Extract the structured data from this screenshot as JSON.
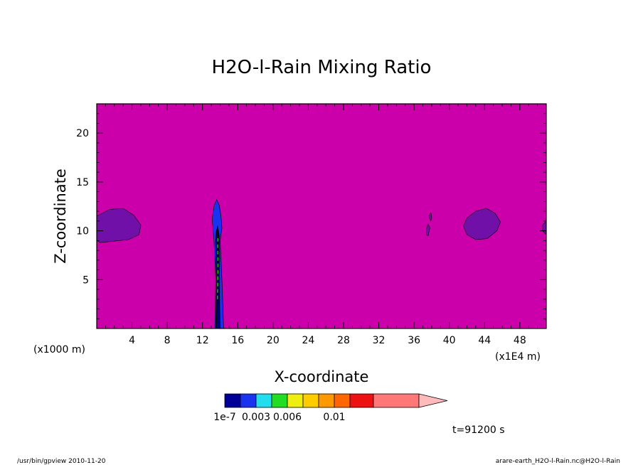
{
  "chart_data": {
    "type": "heatmap",
    "title": "H2O-l-Rain Mixing Ratio",
    "xlabel": "X-coordinate",
    "ylabel": "Z-coordinate",
    "x_unit_left": "(x1000 m)",
    "x_unit_right": "(x1E4 m)",
    "xlim": [
      0,
      51
    ],
    "ylim": [
      0,
      23
    ],
    "x_ticks": [
      "4",
      "8",
      "12",
      "16",
      "20",
      "24",
      "28",
      "32",
      "36",
      "40",
      "44",
      "48"
    ],
    "x_tick_values": [
      4,
      8,
      12,
      16,
      20,
      24,
      28,
      32,
      36,
      40,
      44,
      48
    ],
    "y_ticks": [
      "5",
      "10",
      "15",
      "20"
    ],
    "y_tick_values": [
      5,
      10,
      15,
      20
    ],
    "background_color": "#cc00aa",
    "regions": [
      {
        "label": "patch-left",
        "color": "#7010a8",
        "points": [
          [
            0,
            9
          ],
          [
            0,
            11.5
          ],
          [
            1.5,
            12.2
          ],
          [
            3,
            12.3
          ],
          [
            4.2,
            11.6
          ],
          [
            5,
            10.6
          ],
          [
            4.8,
            9.6
          ],
          [
            3.6,
            9.1
          ],
          [
            1.5,
            8.9
          ],
          [
            0.4,
            8.8
          ]
        ]
      },
      {
        "label": "column-outer",
        "color": "#1a33ee",
        "points": [
          [
            13.4,
            0
          ],
          [
            13.5,
            5
          ],
          [
            13.3,
            9
          ],
          [
            13.1,
            11.2
          ],
          [
            13.3,
            12.5
          ],
          [
            13.6,
            13.2
          ],
          [
            13.9,
            12.6
          ],
          [
            14.1,
            11.5
          ],
          [
            14.2,
            10.3
          ],
          [
            14.0,
            9
          ],
          [
            14.2,
            5
          ],
          [
            14.4,
            0
          ]
        ]
      },
      {
        "label": "column-inner",
        "color": "#000088",
        "points": [
          [
            13.6,
            0
          ],
          [
            13.7,
            5
          ],
          [
            13.6,
            9.5
          ],
          [
            13.7,
            10.5
          ],
          [
            13.9,
            9.5
          ],
          [
            13.9,
            5
          ],
          [
            14.0,
            0
          ]
        ]
      },
      {
        "label": "blob-38a",
        "color": "#7010a8",
        "points": [
          [
            37.7,
            11.4
          ],
          [
            37.9,
            11.9
          ],
          [
            38.0,
            11.4
          ],
          [
            37.9,
            11
          ]
        ]
      },
      {
        "label": "blob-38b",
        "color": "#7010a8",
        "points": [
          [
            37.4,
            10.2
          ],
          [
            37.6,
            10.7
          ],
          [
            37.8,
            10.3
          ],
          [
            37.6,
            9.5
          ],
          [
            37.4,
            9.6
          ]
        ]
      },
      {
        "label": "patch-44",
        "color": "#7010a8",
        "points": [
          [
            41.6,
            10.5
          ],
          [
            42,
            11.3
          ],
          [
            43,
            12
          ],
          [
            44.2,
            12.3
          ],
          [
            45.2,
            11.8
          ],
          [
            45.8,
            10.9
          ],
          [
            45.4,
            10
          ],
          [
            44.3,
            9.2
          ],
          [
            43,
            9.1
          ],
          [
            42,
            9.6
          ]
        ]
      },
      {
        "label": "patch-right-edge",
        "color": "#7010a8",
        "points": [
          [
            51,
            9.6
          ],
          [
            50.6,
            10
          ],
          [
            50.6,
            10.6
          ],
          [
            51,
            11
          ]
        ]
      }
    ],
    "contour_lines": [
      {
        "color": "#000000",
        "points": [
          [
            13.55,
            0
          ],
          [
            13.6,
            5
          ],
          [
            13.5,
            9
          ],
          [
            13.6,
            10
          ],
          [
            13.7,
            10.3
          ],
          [
            13.8,
            10
          ],
          [
            13.75,
            9
          ],
          [
            13.85,
            5
          ],
          [
            13.85,
            0
          ]
        ]
      },
      {
        "color": "#22cc22",
        "dashed": true,
        "points": [
          [
            13.7,
            3
          ],
          [
            13.75,
            6
          ],
          [
            13.72,
            8.5
          ],
          [
            13.75,
            9.5
          ]
        ]
      }
    ],
    "colorbar": {
      "colors": [
        "#000099",
        "#1a33ee",
        "#22ddee",
        "#22dd22",
        "#eeee11",
        "#ffcc00",
        "#ff9900",
        "#ff6600",
        "#ee1111",
        "#ff7777"
      ],
      "extend_color": "#ffbbbb",
      "tick_labels": [
        "1e-7",
        "0.003",
        "0.006",
        "0.01"
      ],
      "tick_positions": [
        0,
        2,
        4,
        7
      ]
    }
  },
  "annotations": {
    "time": "t=91200 s",
    "program": "/usr/bin/gpview   2010-11-20",
    "source": "arare-earth_H2O-l-Rain.nc@H2O-l-Rain"
  }
}
